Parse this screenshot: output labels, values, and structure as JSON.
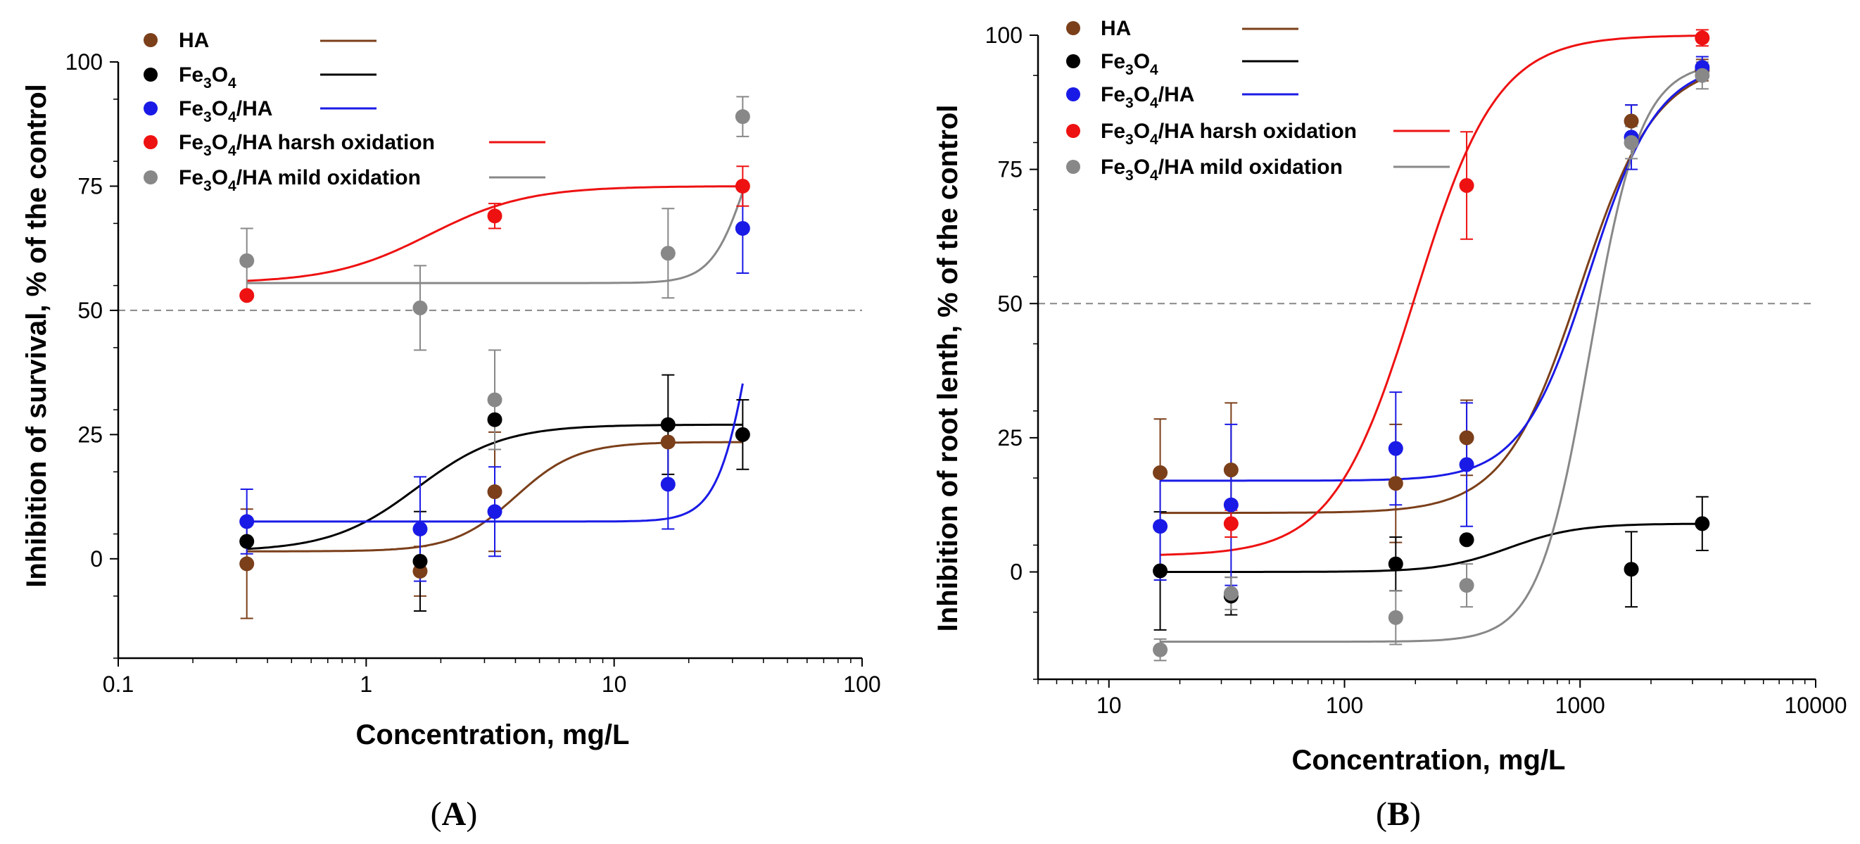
{
  "chart_data": [
    {
      "panel": "A",
      "type": "scatter",
      "xscale": "log",
      "xlim": [
        0.1,
        100
      ],
      "ylim": [
        -20,
        100
      ],
      "xlabel": "Concentration, mg/L",
      "ylabel": "Inhibition of survival, % of the control",
      "xticks": [
        "0.1",
        "1",
        "10",
        "100"
      ],
      "yticks": [
        "0",
        "25",
        "50",
        "75",
        "100"
      ],
      "reference_line_y": 50,
      "legend": "top-left",
      "series": [
        {
          "name": "HA",
          "color": "#7b3f1a",
          "x": [
            0.33,
            1.65,
            3.3,
            16.5
          ],
          "y": [
            -1,
            -2.5,
            13.5,
            23.5
          ],
          "err": [
            11,
            5,
            12,
            0
          ],
          "fit": {
            "A1": 1.5,
            "A2": 23.5,
            "x0": 4.0,
            "p": 3.5
          }
        },
        {
          "name": "Fe3O4",
          "color": "#000000",
          "x": [
            0.33,
            1.65,
            3.3,
            16.5,
            33
          ],
          "y": [
            3.5,
            -0.5,
            28,
            27,
            25
          ],
          "err": [
            0,
            10,
            0,
            10,
            7
          ],
          "fit": {
            "A1": 1.5,
            "A2": 27,
            "x0": 1.6,
            "p": 2.5
          }
        },
        {
          "name": "Fe3O4/HA",
          "color": "#1a1ae6",
          "x": [
            0.33,
            1.65,
            3.3,
            16.5,
            33
          ],
          "y": [
            7.5,
            6,
            9.5,
            15,
            66.5
          ],
          "err": [
            6.5,
            10.5,
            9,
            9,
            9
          ],
          "fit": {
            "A1": 7.5,
            "A2": 100,
            "x0": 38,
            "p": 6
          }
        },
        {
          "name": "Fe3O4/HA harsh oxidation",
          "color": "#ee1111",
          "x": [
            0.33,
            3.3,
            33
          ],
          "y": [
            53,
            69,
            75
          ],
          "err": [
            0,
            2.5,
            4
          ],
          "fit": {
            "A1": 55.5,
            "A2": 75,
            "x0": 1.8,
            "p": 2.2
          }
        },
        {
          "name": "Fe3O4/HA mild oxidation",
          "color": "#888888",
          "x": [
            0.33,
            1.65,
            3.3,
            16.5,
            33
          ],
          "y": [
            60,
            50.5,
            32,
            61.5,
            89
          ],
          "err": [
            6.5,
            8.5,
            10,
            9,
            4
          ],
          "fit": {
            "A1": 55.5,
            "A2": 100,
            "x0": 35,
            "p": 6
          }
        }
      ],
      "panel_label": "A"
    },
    {
      "panel": "B",
      "type": "scatter",
      "xscale": "log",
      "xlim": [
        5,
        10000
      ],
      "ylim": [
        -20,
        100
      ],
      "xlabel": "Concentration, mg/L",
      "ylabel": "Inhibition of root lenth, % of the control",
      "xticks": [
        "10",
        "100",
        "1000",
        "10000"
      ],
      "yticks": [
        "0",
        "25",
        "50",
        "75",
        "100"
      ],
      "reference_line_y": 50,
      "legend": "top-left",
      "series": [
        {
          "name": "HA",
          "color": "#7b3f1a",
          "x": [
            16.5,
            33,
            165,
            330,
            1650,
            3300
          ],
          "y": [
            18.5,
            19,
            16.5,
            25,
            84,
            93.5
          ],
          "err": [
            10,
            12.5,
            11,
            7,
            3,
            2
          ],
          "fit": {
            "A1": 11,
            "A2": 95,
            "x0": 1000,
            "p": 2.7
          }
        },
        {
          "name": "Fe3O4",
          "color": "#000000",
          "x": [
            16.5,
            33,
            165,
            330,
            1650,
            3300
          ],
          "y": [
            0.2,
            -4.5,
            1.5,
            6,
            0.5,
            9
          ],
          "err": [
            11,
            3.5,
            5,
            0,
            7,
            5
          ],
          "fit": {
            "A1": 0,
            "A2": 9,
            "x0": 500,
            "p": 3
          }
        },
        {
          "name": "Fe3O4/HA",
          "color": "#1a1ae6",
          "x": [
            16.5,
            33,
            165,
            330,
            1650,
            3300
          ],
          "y": [
            8.5,
            12.5,
            23,
            20,
            81,
            94
          ],
          "err": [
            10,
            15,
            10.5,
            11.5,
            6,
            2
          ],
          "fit": {
            "A1": 17,
            "A2": 95,
            "x0": 1100,
            "p": 3
          }
        },
        {
          "name": "Fe3O4/HA harsh oxidation",
          "color": "#ee1111",
          "x": [
            33,
            330,
            3300
          ],
          "y": [
            9,
            72,
            99.5
          ],
          "err": [
            2.5,
            10,
            1.5
          ],
          "fit": {
            "A1": 3,
            "A2": 100,
            "x0": 200,
            "p": 2.5
          }
        },
        {
          "name": "Fe3O4/HA mild oxidation",
          "color": "#888888",
          "x": [
            16.5,
            33,
            165,
            330,
            1650,
            3300
          ],
          "y": [
            -14.5,
            -4,
            -8.5,
            -2.5,
            80,
            92.5
          ],
          "err": [
            2,
            3,
            5,
            4,
            3,
            2.5
          ],
          "fit": {
            "A1": -13,
            "A2": 95,
            "x0": 1100,
            "p": 4
          }
        }
      ],
      "panel_label": "B"
    }
  ],
  "legend_labels": {
    "ha": "HA",
    "fe3o4_base": "Fe",
    "fe3o4_sub1": "3",
    "fe3o4_o": "O",
    "fe3o4_sub2": "4",
    "fe3o4ha_suffix": "/HA",
    "harsh_suffix": "/HA harsh oxidation",
    "mild_suffix": "/HA mild oxidation"
  }
}
